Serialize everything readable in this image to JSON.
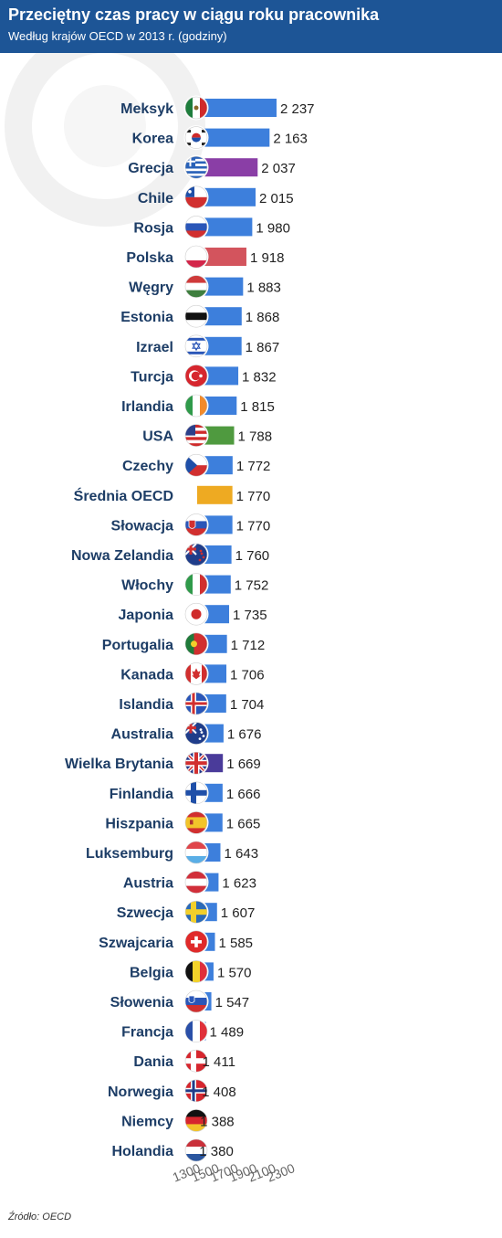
{
  "header": {
    "title": "Przeciętny czas pracy w ciągu roku pracownika",
    "subtitle": "Według krajów OECD w 2013 r. (godziny)"
  },
  "source": "Źródło: OECD",
  "colors": {
    "header_bg": "#1d5596",
    "default_bar": "#3d7fdc",
    "label_text": "#1d3d66"
  },
  "chart_data": {
    "type": "bar",
    "orientation": "horizontal",
    "title": "Przeciętny czas pracy w ciągu roku pracownika",
    "subtitle": "Według krajów OECD w 2013 r. (godziny)",
    "xlabel": "",
    "ylabel": "",
    "xlim": [
      1300,
      2300
    ],
    "xticks": [
      1300,
      1500,
      1700,
      1900,
      2100,
      2300
    ],
    "xtick_labels": [
      "1300",
      "1500",
      "1700",
      "1900",
      "2100",
      "2300"
    ],
    "grid": false,
    "legend": "none",
    "categories": [
      "Meksyk",
      "Korea",
      "Grecja",
      "Chile",
      "Rosja",
      "Polska",
      "Węgry",
      "Estonia",
      "Izrael",
      "Turcja",
      "Irlandia",
      "USA",
      "Czechy",
      "Średnia OECD",
      "Słowacja",
      "Nowa Zelandia",
      "Włochy",
      "Japonia",
      "Portugalia",
      "Kanada",
      "Islandia",
      "Australia",
      "Wielka Brytania",
      "Finlandia",
      "Hiszpania",
      "Luksemburg",
      "Austria",
      "Szwecja",
      "Szwajcaria",
      "Belgia",
      "Słowenia",
      "Francja",
      "Dania",
      "Norwegia",
      "Niemcy",
      "Holandia"
    ],
    "values": [
      2237,
      2163,
      2037,
      2015,
      1980,
      1918,
      1883,
      1868,
      1867,
      1832,
      1815,
      1788,
      1772,
      1770,
      1770,
      1760,
      1752,
      1735,
      1712,
      1706,
      1704,
      1676,
      1669,
      1666,
      1665,
      1643,
      1623,
      1607,
      1585,
      1570,
      1547,
      1489,
      1411,
      1408,
      1388,
      1380
    ],
    "value_labels": [
      "2 237",
      "2 163",
      "2 037",
      "2 015",
      "1 980",
      "1 918",
      "1 883",
      "1 868",
      "1 867",
      "1 832",
      "1 815",
      "1 788",
      "1 772",
      "1 770",
      "1 770",
      "1 760",
      "1 752",
      "1 735",
      "1 712",
      "1 706",
      "1 704",
      "1 676",
      "1 669",
      "1 666",
      "1 665",
      "1 643",
      "1 623",
      "1 607",
      "1 585",
      "1 570",
      "1 547",
      "1 489",
      "1 411",
      "1 408",
      "1 388",
      "1 380"
    ],
    "bar_colors": [
      "#3d7fdc",
      "#3d7fdc",
      "#8a3ea6",
      "#3d7fdc",
      "#3d7fdc",
      "#d3545d",
      "#3d7fdc",
      "#3d7fdc",
      "#3d7fdc",
      "#3d7fdc",
      "#3d7fdc",
      "#4f9a3f",
      "#3d7fdc",
      "#eeaa22",
      "#3d7fdc",
      "#3d7fdc",
      "#3d7fdc",
      "#3d7fdc",
      "#3d7fdc",
      "#3d7fdc",
      "#3d7fdc",
      "#3d7fdc",
      "#4a3b9a",
      "#3d7fdc",
      "#3d7fdc",
      "#3d7fdc",
      "#3d7fdc",
      "#3d7fdc",
      "#3d7fdc",
      "#3d7fdc",
      "#3d7fdc",
      "#3d7fdc",
      "#3d7fdc",
      "#3d7fdc",
      "#3d7fdc",
      "#3d7fdc"
    ],
    "flag_icons": [
      "mexico-flag-icon",
      "south-korea-flag-icon",
      "greece-flag-icon",
      "chile-flag-icon",
      "russia-flag-icon",
      "poland-flag-icon",
      "hungary-flag-icon",
      "estonia-flag-icon",
      "israel-flag-icon",
      "turkey-flag-icon",
      "ireland-flag-icon",
      "usa-flag-icon",
      "czechia-flag-icon",
      "",
      "slovakia-flag-icon",
      "new-zealand-flag-icon",
      "italy-flag-icon",
      "japan-flag-icon",
      "portugal-flag-icon",
      "canada-flag-icon",
      "iceland-flag-icon",
      "australia-flag-icon",
      "uk-flag-icon",
      "finland-flag-icon",
      "spain-flag-icon",
      "luxembourg-flag-icon",
      "austria-flag-icon",
      "sweden-flag-icon",
      "switzerland-flag-icon",
      "belgium-flag-icon",
      "slovenia-flag-icon",
      "france-flag-icon",
      "denmark-flag-icon",
      "norway-flag-icon",
      "germany-flag-icon",
      "netherlands-flag-icon"
    ]
  }
}
